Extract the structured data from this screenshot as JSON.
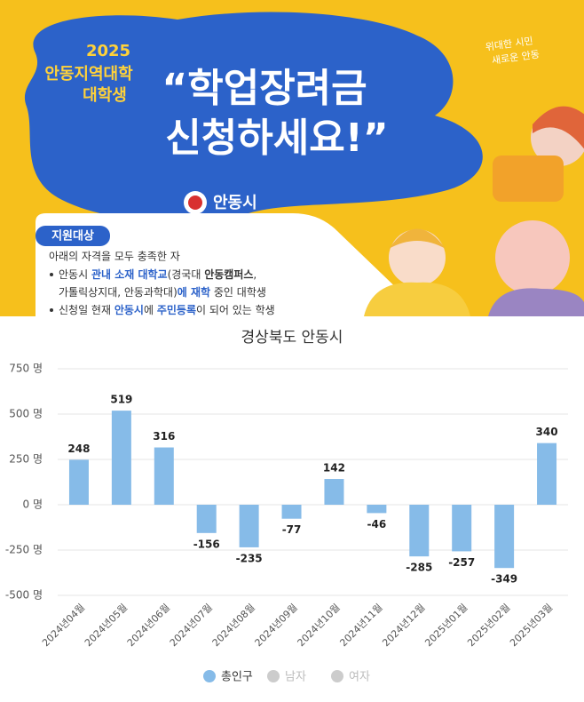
{
  "banner": {
    "year": "2025",
    "line1": "안동지역대학",
    "line2": "대학생",
    "headline1": "“학업장려금",
    "headline2": "신청하세요!”",
    "slogan1": "위대한 시민",
    "slogan2": "새로운 안동",
    "city": "안동시",
    "section": "지원대상",
    "intro": "아래의 자격을 모두 충족한 자",
    "bullets": [
      [
        [
          {
            "text": "안동시 "
          },
          {
            "text": "관내 소재 대학교",
            "emphasis": true
          },
          {
            "text": "(경국대 "
          },
          {
            "text": "안동캠퍼스",
            "bold": true
          },
          {
            "text": ","
          }
        ],
        [
          {
            "text": "가톨릭상지대, 안동과학대)"
          },
          {
            "text": "에 재학",
            "emphasis": true
          },
          {
            "text": " 중인 대학생"
          }
        ]
      ],
      [
        [
          {
            "text": "신청일 현재 "
          },
          {
            "text": "안동시",
            "emphasis": true
          },
          {
            "text": "에 "
          },
          {
            "text": "주민등록",
            "emphasis": true
          },
          {
            "text": "이 되어 있는 학생"
          }
        ]
      ]
    ]
  },
  "chart_data": {
    "type": "bar",
    "title": "경상북도 안동시",
    "categories": [
      "2024년04월",
      "2024년05월",
      "2024년06월",
      "2024년07월",
      "2024년08월",
      "2024년09월",
      "2024년10월",
      "2024년11월",
      "2024년12월",
      "2025년01월",
      "2025년02월",
      "2025년03월"
    ],
    "series": [
      {
        "name": "총인구",
        "color": "#86bbe8",
        "values": [
          248,
          519,
          316,
          -156,
          -235,
          -77,
          142,
          -46,
          -285,
          -257,
          -349,
          340
        ]
      }
    ],
    "inactive_series": [
      {
        "name": "남자",
        "color": "#cccccc"
      },
      {
        "name": "여자",
        "color": "#cccccc"
      }
    ],
    "ylim": [
      -500,
      750
    ],
    "yticks": [
      {
        "value": -500,
        "label": "-500 명"
      },
      {
        "value": -250,
        "label": "-250 명"
      },
      {
        "value": 0,
        "label": "0 명"
      },
      {
        "value": 250,
        "label": "250 명"
      },
      {
        "value": 500,
        "label": "500 명"
      },
      {
        "value": 750,
        "label": "750 명"
      }
    ],
    "grid": true,
    "legend": "bottom"
  }
}
